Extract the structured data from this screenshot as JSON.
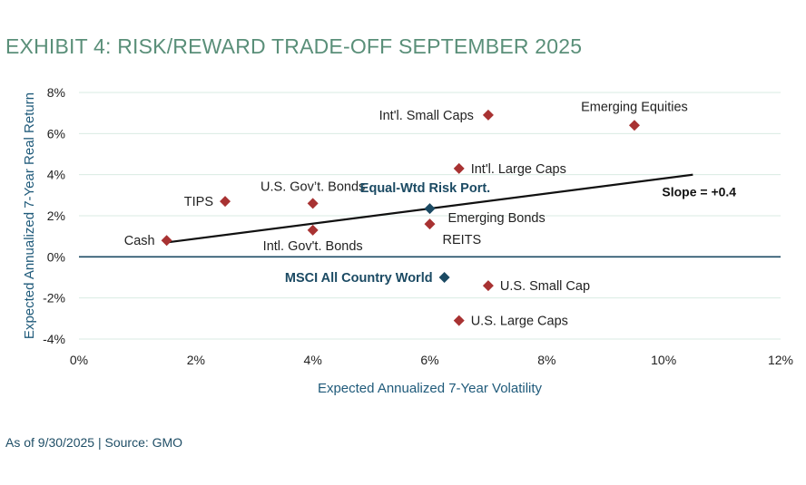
{
  "title": "EXHIBIT 4: RISK/REWARD TRADE-OFF SEPTEMBER 2025",
  "footer": "As of 9/30/2025 | Source: GMO",
  "chart_data": {
    "type": "scatter",
    "title": "EXHIBIT 4: RISK/REWARD TRADE-OFF SEPTEMBER 2025",
    "xlabel": "Expected Annualized 7-Year Volatility",
    "ylabel": "Expected Annualized 7-Year Real Return",
    "xlim": [
      0,
      12
    ],
    "ylim": [
      -4,
      8
    ],
    "x_ticks": [
      0,
      2,
      4,
      6,
      8,
      10,
      12
    ],
    "y_ticks": [
      -4,
      -2,
      0,
      2,
      4,
      6,
      8
    ],
    "x_tick_labels": [
      "0%",
      "2%",
      "4%",
      "6%",
      "8%",
      "10%",
      "12%"
    ],
    "y_tick_labels": [
      "-4%",
      "-2%",
      "0%",
      "2%",
      "4%",
      "6%",
      "8%"
    ],
    "points": [
      {
        "name": "Cash",
        "x": 1.5,
        "y": 0.8,
        "color": "#a83232",
        "label_side": "left",
        "bold": false
      },
      {
        "name": "TIPS",
        "x": 2.5,
        "y": 2.7,
        "color": "#a83232",
        "label_side": "left",
        "bold": false
      },
      {
        "name": "U.S. Gov’t. Bonds",
        "x": 4.0,
        "y": 2.6,
        "color": "#a83232",
        "label_side": "above",
        "bold": false
      },
      {
        "name": "Intl. Gov't. Bonds",
        "x": 4.0,
        "y": 1.3,
        "color": "#a83232",
        "label_side": "below",
        "bold": false
      },
      {
        "name": "Equal-Wtd Risk Port.",
        "x": 6.0,
        "y": 2.35,
        "color": "#1b4a63",
        "label_side": "above-left",
        "bold": true
      },
      {
        "name": "Emerging Bonds",
        "x": 6.0,
        "y": 1.6,
        "color": "#a83232",
        "label_side": "above-right",
        "bold": false
      },
      {
        "name": "REITS",
        "x": 6.0,
        "y": 1.6,
        "color": "#a83232",
        "label_side": "below-right",
        "bold": false,
        "hide_marker": true
      },
      {
        "name": "Int'l. Large Caps",
        "x": 6.5,
        "y": 4.3,
        "color": "#a83232",
        "label_side": "right",
        "bold": false
      },
      {
        "name": "Int'l. Small Caps",
        "x": 7.0,
        "y": 6.9,
        "color": "#a83232",
        "label_side": "left",
        "bold": false
      },
      {
        "name": "Emerging Equities",
        "x": 9.5,
        "y": 6.4,
        "color": "#a83232",
        "label_side": "above",
        "bold": false
      },
      {
        "name": "MSCI All Country World",
        "x": 6.25,
        "y": -1.0,
        "color": "#1b4a63",
        "label_side": "left",
        "bold": true
      },
      {
        "name": "U.S. Small Cap",
        "x": 7.0,
        "y": -1.4,
        "color": "#a83232",
        "label_side": "right",
        "bold": false
      },
      {
        "name": "U.S. Large Caps",
        "x": 6.5,
        "y": -3.1,
        "color": "#a83232",
        "label_side": "right",
        "bold": false
      }
    ],
    "trendline": {
      "x": [
        1.5,
        10.5
      ],
      "y": [
        0.7,
        4.0
      ],
      "label": "Slope = +0.4"
    },
    "grid": true
  },
  "colors": {
    "title": "#5a8f79",
    "grid": "#d9ebe3",
    "zero_line": "#1b4a63",
    "risk_asset": "#a83232",
    "benchmark": "#1b4a63"
  }
}
